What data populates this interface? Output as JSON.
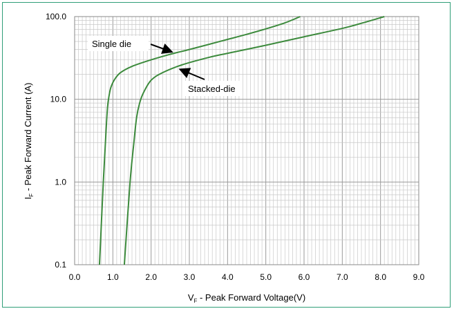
{
  "chart_data": {
    "type": "line",
    "xlabel": {
      "main": "V",
      "sub": "F",
      "rest": " - Peak Forward Voltage(V)"
    },
    "ylabel": {
      "main": "I",
      "sub": "F",
      "rest": " - Peak Forward Current (A)"
    },
    "xlim": [
      0,
      9
    ],
    "ylim": [
      0.1,
      100
    ],
    "yscale": "log",
    "x_ticks": [
      "0.0",
      "1.0",
      "2.0",
      "3.0",
      "4.0",
      "5.0",
      "6.0",
      "7.0",
      "8.0",
      "9.0"
    ],
    "y_ticks": [
      "0.1",
      "1.0",
      "10.0",
      "100.0"
    ],
    "grid": true,
    "series": [
      {
        "name": "Single die",
        "color": "#3c8a3c",
        "x": [
          0.65,
          0.75,
          0.82,
          0.86,
          0.9,
          0.95,
          1.05,
          1.2,
          1.5,
          2.0,
          2.5,
          3.0,
          3.5,
          4.0,
          4.5,
          5.0,
          5.5,
          5.9
        ],
        "y": [
          0.1,
          1.0,
          4.0,
          8.0,
          11.0,
          14.0,
          17.5,
          21.0,
          25.0,
          30.0,
          35.0,
          40.0,
          46.0,
          53.0,
          61.0,
          71.0,
          84.0,
          100.0
        ]
      },
      {
        "name": "Stacked-die",
        "color": "#3c8a3c",
        "x": [
          1.3,
          1.45,
          1.55,
          1.62,
          1.7,
          1.8,
          2.0,
          2.3,
          2.8,
          3.5,
          4.0,
          5.0,
          6.0,
          7.0,
          7.5,
          8.1
        ],
        "y": [
          0.1,
          1.0,
          3.0,
          6.0,
          9.0,
          12.0,
          17.0,
          21.0,
          26.0,
          32.0,
          36.0,
          45.0,
          57.0,
          72.0,
          83.0,
          100.0
        ]
      }
    ],
    "annotations": [
      {
        "text": "Single die",
        "series": 0,
        "points_to_x": 2.6
      },
      {
        "text": "Stacked-die",
        "series": 1,
        "points_to_x": 2.7
      }
    ]
  }
}
